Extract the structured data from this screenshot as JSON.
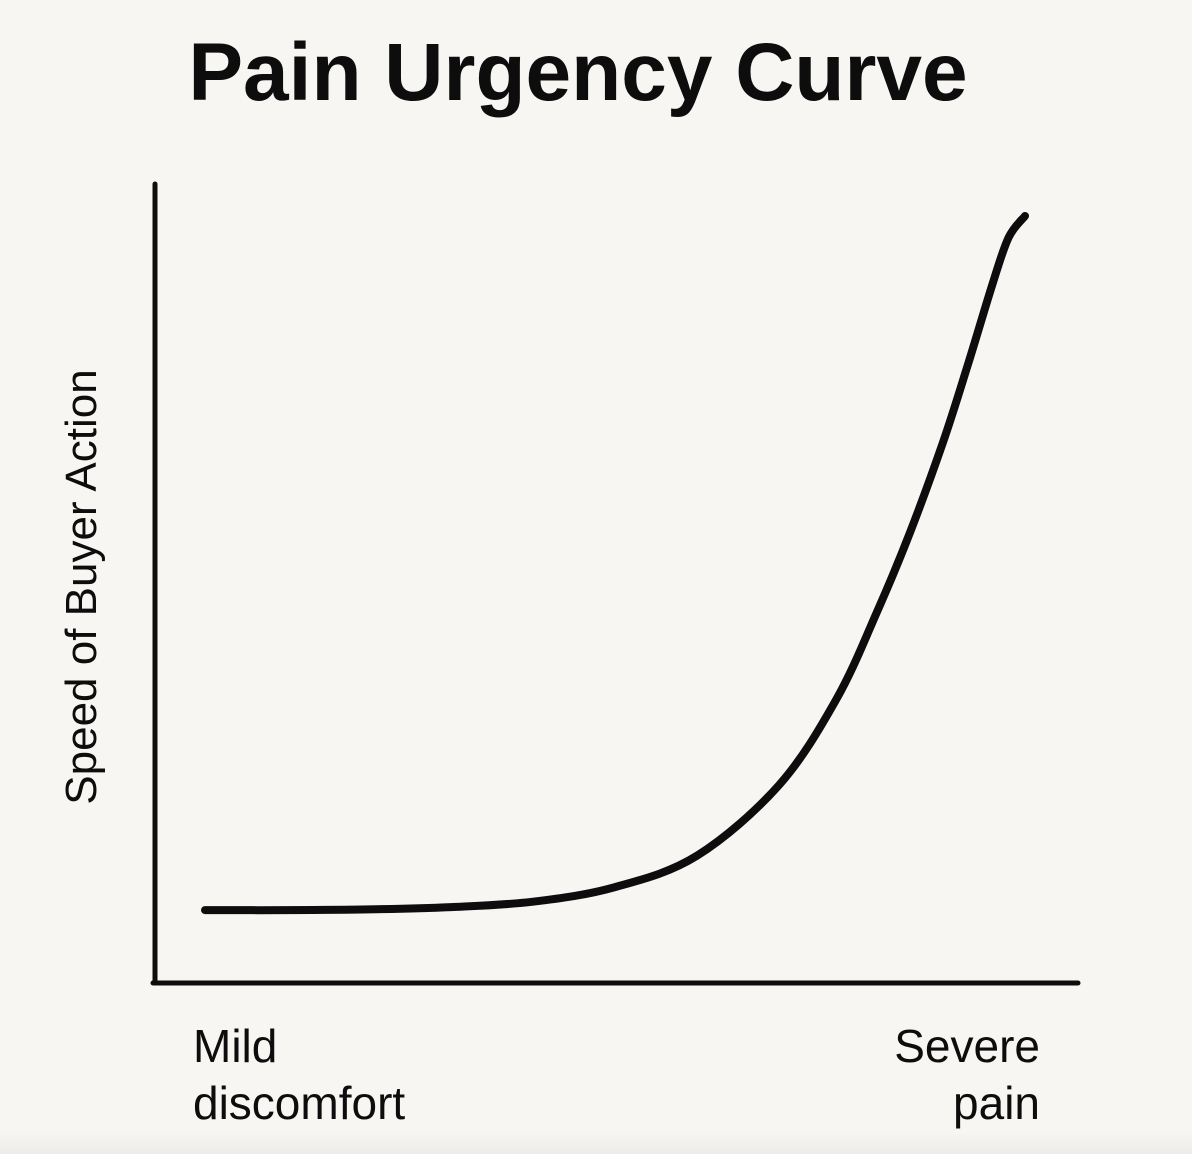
{
  "page": {
    "background_color": "#f8f6f3",
    "ink_color": "#0d0d0d"
  },
  "chart_data": {
    "type": "line",
    "title": "Pain Urgency Curve",
    "ylabel": "Speed of Buyer Action",
    "xlabel": "",
    "x_tick_labels": [
      {
        "line1": "Mild",
        "line2": "discomfort"
      },
      {
        "line1": "Severe",
        "line2": "pain"
      }
    ],
    "xlim": [
      0,
      100
    ],
    "ylim": [
      0,
      100
    ],
    "grid": false,
    "legend": "none",
    "series": [
      {
        "color": "#0d0d0d",
        "points": [
          [
            0,
            9.5
          ],
          [
            10,
            9.5
          ],
          [
            20,
            9.6
          ],
          [
            30,
            9.9
          ],
          [
            40,
            10.6
          ],
          [
            50,
            12.5
          ],
          [
            60,
            16.6
          ],
          [
            70,
            25.8
          ],
          [
            77,
            37.0
          ],
          [
            82,
            48.5
          ],
          [
            86,
            58.8
          ],
          [
            90,
            70.5
          ],
          [
            93,
            80.5
          ],
          [
            96,
            91.0
          ],
          [
            98,
            97.2
          ],
          [
            100,
            100
          ]
        ]
      }
    ]
  }
}
